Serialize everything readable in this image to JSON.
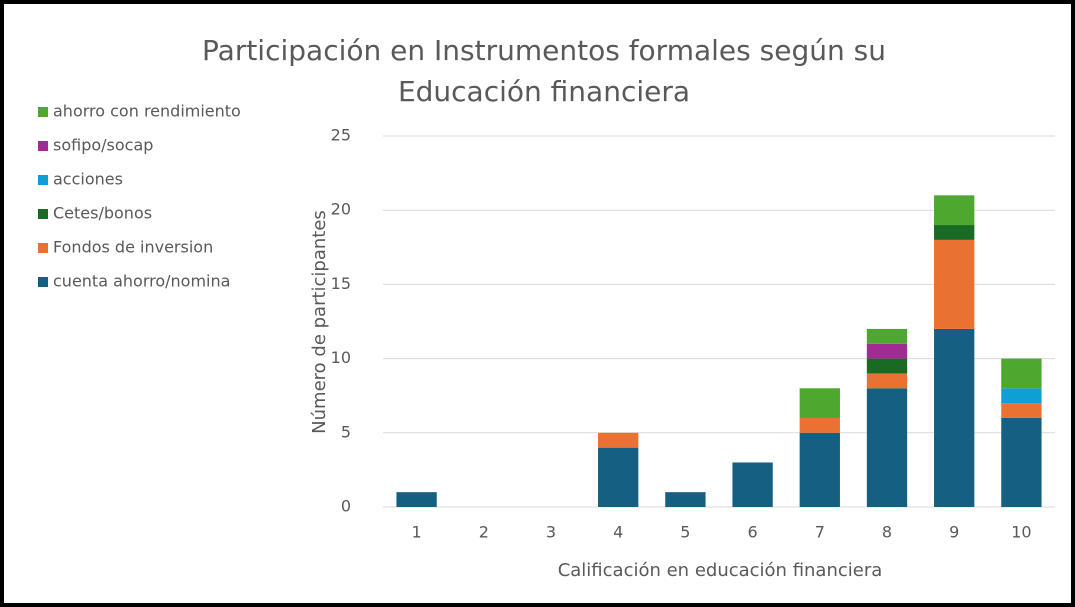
{
  "chart_data": {
    "type": "stacked_bar",
    "title": "Participación en Instrumentos formales según su Educación financiera",
    "x_label": "Calificación en educación financiera",
    "y_label": "Número de participantes",
    "categories": [
      "1",
      "2",
      "3",
      "4",
      "5",
      "6",
      "7",
      "8",
      "9",
      "10"
    ],
    "series": [
      {
        "name": "cuenta ahorro/nomina",
        "color": "#156082",
        "values": [
          1,
          0,
          0,
          4,
          1,
          3,
          5,
          8,
          12,
          6
        ]
      },
      {
        "name": "Fondos de inversion",
        "color": "#e97132",
        "values": [
          0,
          0,
          0,
          1,
          0,
          0,
          1,
          1,
          6,
          1
        ]
      },
      {
        "name": "Cetes/bonos",
        "color": "#196b24",
        "values": [
          0,
          0,
          0,
          0,
          0,
          0,
          0,
          1,
          1,
          0
        ]
      },
      {
        "name": "acciones",
        "color": "#0f9ed5",
        "values": [
          0,
          0,
          0,
          0,
          0,
          0,
          0,
          0,
          0,
          1
        ]
      },
      {
        "name": "sofipo/socap",
        "color": "#a02b93",
        "values": [
          0,
          0,
          0,
          0,
          0,
          0,
          0,
          1,
          0,
          0
        ]
      },
      {
        "name": "ahorro con rendimiento",
        "color": "#4ea72e",
        "values": [
          0,
          0,
          0,
          0,
          0,
          0,
          2,
          1,
          2,
          2
        ]
      }
    ],
    "ylim": [
      0,
      25
    ],
    "yticks": [
      0,
      5,
      10,
      15,
      20,
      25
    ],
    "grid": true,
    "legend": "left"
  }
}
